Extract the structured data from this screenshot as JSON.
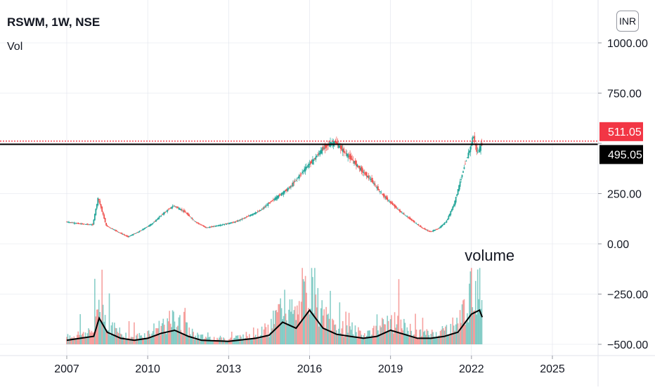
{
  "header": {
    "title": "RSWM, 1W, NSE",
    "volume_label": "Vol",
    "currency": "INR"
  },
  "price_badges": [
    {
      "label": "511.05",
      "value": 511.05,
      "color": "#f23645"
    },
    {
      "label": "495.05",
      "value": 495.05,
      "color": "#000000"
    }
  ],
  "colors": {
    "up": "#26a69a",
    "down": "#ef5350",
    "line": "#000000",
    "dotted": "#f23645",
    "grid": "#e0e3eb"
  },
  "chart_data": {
    "type": "candlestick",
    "title": "RSWM, 1W, NSE",
    "y_axis": {
      "range": [
        -500,
        1000
      ],
      "ticks": [
        1000,
        750,
        500,
        250,
        0,
        -250,
        -500
      ],
      "tick_labels": [
        "1000.00",
        "750.00",
        "",
        "250.00",
        "0.00",
        "−250.00",
        "−500.00"
      ],
      "position": "right"
    },
    "x_axis": {
      "range": [
        2006.2,
        2026.8
      ],
      "ticks": [
        2007,
        2010,
        2013,
        2016,
        2019,
        2022,
        2025
      ],
      "tick_labels": [
        "2007",
        "2010",
        "2013",
        "2016",
        "2019",
        "2022",
        "2025"
      ]
    },
    "horizontal_lines": [
      {
        "value": 511.05,
        "style": "dotted",
        "color": "#f23645"
      },
      {
        "value": 495.05,
        "style": "solid",
        "color": "#000000"
      }
    ],
    "price_series": {
      "name": "RSWM",
      "x": [
        2007.0,
        2007.5,
        2008.0,
        2008.2,
        2008.5,
        2009.0,
        2009.3,
        2009.7,
        2010.2,
        2010.6,
        2011.0,
        2011.4,
        2011.8,
        2012.2,
        2012.8,
        2013.3,
        2013.8,
        2014.2,
        2014.6,
        2015.0,
        2015.3,
        2015.6,
        2015.9,
        2016.2,
        2016.5,
        2016.8,
        2017.0,
        2017.3,
        2017.6,
        2018.0,
        2018.3,
        2018.7,
        2019.0,
        2019.4,
        2019.8,
        2020.2,
        2020.5,
        2020.8,
        2021.1,
        2021.4,
        2021.6,
        2021.8,
        2022.0,
        2022.1,
        2022.25,
        2022.4
      ],
      "values": [
        110,
        100,
        95,
        230,
        90,
        55,
        35,
        60,
        100,
        150,
        190,
        160,
        110,
        80,
        95,
        110,
        140,
        165,
        210,
        250,
        280,
        330,
        380,
        420,
        470,
        500,
        505,
        460,
        420,
        360,
        320,
        250,
        210,
        160,
        120,
        80,
        60,
        75,
        110,
        200,
        300,
        400,
        480,
        540,
        450,
        495
      ]
    },
    "volume_series": {
      "name": "Vol",
      "x": [
        2007.0,
        2007.5,
        2008.0,
        2008.2,
        2008.5,
        2009.0,
        2009.5,
        2010.0,
        2010.5,
        2011.0,
        2011.5,
        2012.0,
        2013.0,
        2014.0,
        2014.5,
        2015.0,
        2015.5,
        2016.0,
        2016.5,
        2017.0,
        2017.5,
        2018.0,
        2018.5,
        2019.0,
        2019.5,
        2020.0,
        2020.5,
        2021.0,
        2021.5,
        2022.0,
        2022.3,
        2022.4
      ],
      "values": [
        -480,
        -470,
        -460,
        -370,
        -440,
        -470,
        -480,
        -470,
        -445,
        -430,
        -460,
        -480,
        -485,
        -470,
        -455,
        -390,
        -420,
        -330,
        -420,
        -450,
        -460,
        -470,
        -460,
        -430,
        -450,
        -470,
        -470,
        -460,
        -440,
        -350,
        -330,
        -365
      ]
    },
    "annotations": [
      {
        "text": "volume",
        "x": 2021.75,
        "y": -300
      }
    ]
  }
}
